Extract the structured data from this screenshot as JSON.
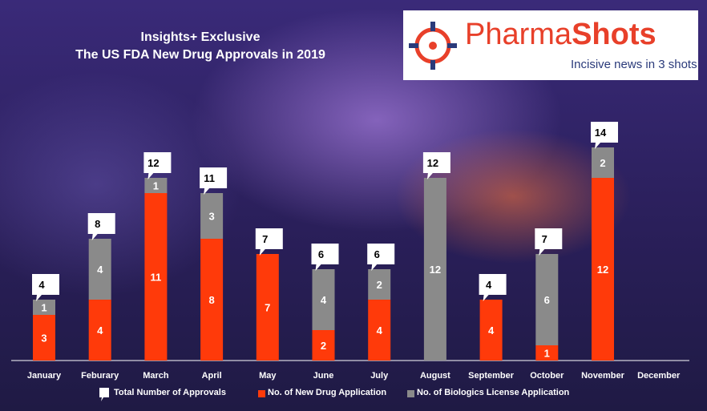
{
  "header": {
    "title_line1": "Insights+ Exclusive",
    "title_line2": "The US FDA New Drug Approvals in 2019"
  },
  "logo": {
    "word_a": "Pharma",
    "word_b": "Shots",
    "tagline": "Incisive news in 3 shots"
  },
  "legend": {
    "total": "Total Number of Approvals",
    "nda": "No. of New Drug Application",
    "bla": "No. of Biologics License Application"
  },
  "colors": {
    "nda": "#ff3a0a",
    "bla": "#8a8a8a",
    "total_box": "#ffffff",
    "axis": "#ffffff"
  },
  "chart_data": {
    "type": "bar",
    "stacked": true,
    "title": "The US FDA New Drug Approvals in 2019",
    "categories": [
      "January",
      "Feburary",
      "March",
      "April",
      "May",
      "June",
      "July",
      "August",
      "September",
      "October",
      "November",
      "December"
    ],
    "series": [
      {
        "name": "No. of New Drug Application",
        "values": [
          3,
          4,
          11,
          8,
          7,
          2,
          4,
          0,
          4,
          1,
          12,
          0
        ]
      },
      {
        "name": "No. of Biologics License Application",
        "values": [
          1,
          4,
          1,
          3,
          0,
          4,
          2,
          12,
          0,
          6,
          2,
          0
        ]
      }
    ],
    "totals": [
      4,
      8,
      12,
      11,
      7,
      6,
      6,
      12,
      4,
      7,
      14,
      null
    ],
    "ylim": [
      0,
      14
    ]
  }
}
